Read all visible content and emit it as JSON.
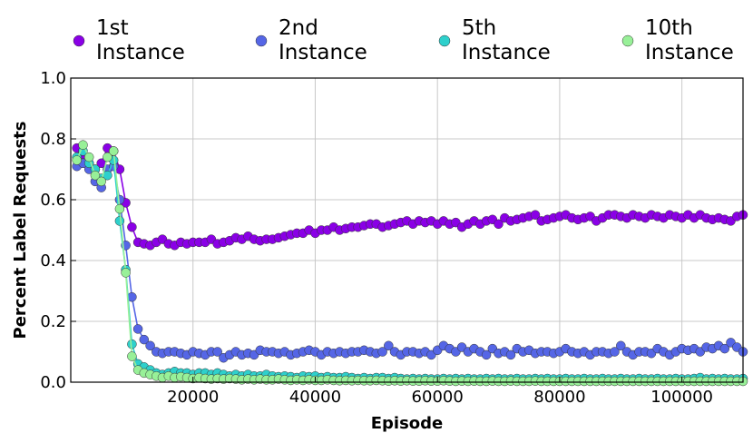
{
  "chart_data": {
    "type": "line",
    "xlabel": "Episode",
    "ylabel": "Percent Label Requests",
    "xlim": [
      0,
      110000
    ],
    "ylim": [
      0,
      1.0
    ],
    "xticks": [
      20000,
      40000,
      60000,
      80000,
      100000
    ],
    "xtick_labels": [
      "20000",
      "40000",
      "60000",
      "80000",
      "100000"
    ],
    "yticks": [
      0.0,
      0.2,
      0.4,
      0.6,
      0.8,
      1.0
    ],
    "ytick_labels": [
      "0.0",
      "0.2",
      "0.4",
      "0.6",
      "0.8",
      "1.0"
    ],
    "grid": true,
    "legend_position": "top",
    "x_step": 1000,
    "series": [
      {
        "name": "1st Instance",
        "color": "#8a00e6",
        "values": [
          0.77,
          0.75,
          0.72,
          0.7,
          0.72,
          0.77,
          0.76,
          0.7,
          0.59,
          0.51,
          0.46,
          0.455,
          0.45,
          0.46,
          0.47,
          0.455,
          0.45,
          0.46,
          0.455,
          0.46,
          0.46,
          0.46,
          0.47,
          0.455,
          0.46,
          0.465,
          0.475,
          0.47,
          0.48,
          0.47,
          0.465,
          0.47,
          0.47,
          0.475,
          0.48,
          0.485,
          0.49,
          0.49,
          0.5,
          0.49,
          0.5,
          0.5,
          0.51,
          0.5,
          0.505,
          0.51,
          0.51,
          0.515,
          0.52,
          0.52,
          0.51,
          0.515,
          0.52,
          0.525,
          0.53,
          0.52,
          0.53,
          0.525,
          0.53,
          0.52,
          0.53,
          0.52,
          0.525,
          0.51,
          0.52,
          0.53,
          0.52,
          0.53,
          0.535,
          0.52,
          0.54,
          0.53,
          0.535,
          0.54,
          0.545,
          0.55,
          0.53,
          0.535,
          0.54,
          0.545,
          0.55,
          0.54,
          0.535,
          0.54,
          0.545,
          0.53,
          0.54,
          0.55,
          0.55,
          0.545,
          0.54,
          0.55,
          0.545,
          0.54,
          0.55,
          0.545,
          0.54,
          0.55,
          0.545,
          0.54,
          0.55,
          0.54,
          0.55,
          0.54,
          0.535,
          0.54,
          0.535,
          0.53,
          0.545,
          0.55,
          0.54
        ]
      },
      {
        "name": "2nd Instance",
        "color": "#5566e6",
        "values": [
          0.71,
          0.72,
          0.7,
          0.66,
          0.64,
          0.7,
          0.71,
          0.6,
          0.45,
          0.28,
          0.175,
          0.14,
          0.12,
          0.1,
          0.095,
          0.1,
          0.1,
          0.095,
          0.09,
          0.1,
          0.095,
          0.09,
          0.1,
          0.1,
          0.08,
          0.09,
          0.1,
          0.09,
          0.095,
          0.09,
          0.105,
          0.1,
          0.1,
          0.095,
          0.1,
          0.09,
          0.095,
          0.1,
          0.105,
          0.1,
          0.09,
          0.1,
          0.095,
          0.1,
          0.095,
          0.1,
          0.1,
          0.105,
          0.1,
          0.095,
          0.1,
          0.12,
          0.1,
          0.09,
          0.1,
          0.1,
          0.095,
          0.1,
          0.09,
          0.105,
          0.12,
          0.11,
          0.1,
          0.115,
          0.1,
          0.11,
          0.1,
          0.09,
          0.11,
          0.095,
          0.1,
          0.09,
          0.11,
          0.1,
          0.105,
          0.095,
          0.1,
          0.1,
          0.095,
          0.1,
          0.11,
          0.1,
          0.095,
          0.1,
          0.09,
          0.1,
          0.1,
          0.095,
          0.1,
          0.12,
          0.1,
          0.09,
          0.1,
          0.1,
          0.095,
          0.11,
          0.1,
          0.09,
          0.1,
          0.11,
          0.105,
          0.11,
          0.1,
          0.115,
          0.11,
          0.12,
          0.11,
          0.13,
          0.115,
          0.1,
          0.11
        ]
      },
      {
        "name": "5th Instance",
        "color": "#2ed0cc",
        "values": [
          0.74,
          0.76,
          0.72,
          0.7,
          0.67,
          0.68,
          0.73,
          0.53,
          0.37,
          0.125,
          0.06,
          0.05,
          0.04,
          0.03,
          0.025,
          0.03,
          0.035,
          0.03,
          0.03,
          0.025,
          0.03,
          0.03,
          0.025,
          0.03,
          0.025,
          0.02,
          0.025,
          0.02,
          0.025,
          0.02,
          0.02,
          0.025,
          0.02,
          0.018,
          0.02,
          0.018,
          0.015,
          0.02,
          0.018,
          0.02,
          0.015,
          0.018,
          0.015,
          0.015,
          0.018,
          0.015,
          0.012,
          0.015,
          0.012,
          0.015,
          0.015,
          0.012,
          0.015,
          0.012,
          0.01,
          0.012,
          0.01,
          0.012,
          0.01,
          0.01,
          0.012,
          0.01,
          0.012,
          0.01,
          0.012,
          0.01,
          0.01,
          0.012,
          0.01,
          0.012,
          0.01,
          0.01,
          0.012,
          0.01,
          0.01,
          0.012,
          0.01,
          0.012,
          0.01,
          0.01,
          0.012,
          0.01,
          0.01,
          0.012,
          0.01,
          0.01,
          0.012,
          0.01,
          0.01,
          0.012,
          0.01,
          0.01,
          0.012,
          0.01,
          0.01,
          0.012,
          0.01,
          0.01,
          0.012,
          0.01,
          0.01,
          0.012,
          0.015,
          0.01,
          0.012,
          0.01,
          0.012,
          0.01,
          0.01,
          0.012,
          0.01
        ]
      },
      {
        "name": "10th Instance",
        "color": "#98f098",
        "values": [
          0.73,
          0.78,
          0.74,
          0.68,
          0.66,
          0.74,
          0.76,
          0.57,
          0.36,
          0.085,
          0.04,
          0.03,
          0.025,
          0.02,
          0.015,
          0.02,
          0.015,
          0.018,
          0.015,
          0.012,
          0.015,
          0.012,
          0.01,
          0.012,
          0.01,
          0.012,
          0.01,
          0.008,
          0.01,
          0.008,
          0.01,
          0.008,
          0.008,
          0.01,
          0.008,
          0.006,
          0.008,
          0.006,
          0.008,
          0.006,
          0.006,
          0.008,
          0.006,
          0.005,
          0.006,
          0.005,
          0.006,
          0.005,
          0.005,
          0.006,
          0.005,
          0.004,
          0.005,
          0.004,
          0.005,
          0.004,
          0.004,
          0.005,
          0.004,
          0.004,
          0.005,
          0.004,
          0.003,
          0.004,
          0.003,
          0.004,
          0.003,
          0.003,
          0.004,
          0.003,
          0.003,
          0.004,
          0.003,
          0.003,
          0.003,
          0.004,
          0.003,
          0.003,
          0.003,
          0.003,
          0.003,
          0.003,
          0.003,
          0.003,
          0.003,
          0.003,
          0.003,
          0.003,
          0.003,
          0.003,
          0.003,
          0.003,
          0.003,
          0.003,
          0.003,
          0.003,
          0.003,
          0.003,
          0.003,
          0.003,
          0.003,
          0.003,
          0.003,
          0.003,
          0.003,
          0.003,
          0.003,
          0.003,
          0.003,
          0.003,
          0.003
        ]
      }
    ]
  }
}
